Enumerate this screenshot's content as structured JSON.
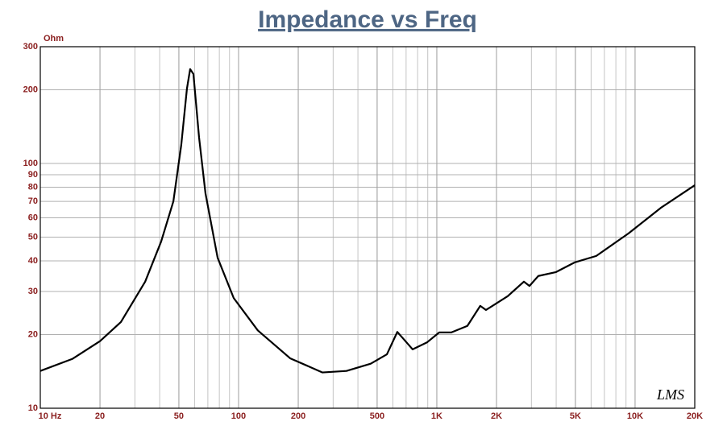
{
  "chart_data": {
    "type": "line",
    "title": "Impedance vs Freq",
    "y_label": "Ohm",
    "watermark": "LMS",
    "log_x": true,
    "log_y": true,
    "grid": true,
    "minor_grid": true,
    "xlim": [
      10,
      20000
    ],
    "ylim": [
      10,
      300
    ],
    "xticks": [
      {
        "value": 10,
        "label": "10  Hz"
      },
      20,
      50,
      100,
      200,
      500,
      {
        "value": 1000,
        "label": "1K"
      },
      {
        "value": 2000,
        "label": "2K"
      },
      {
        "value": 5000,
        "label": "5K"
      },
      {
        "value": 10000,
        "label": "10K"
      },
      {
        "value": 20000,
        "label": "20K"
      }
    ],
    "yticks": [
      10,
      20,
      30,
      40,
      50,
      60,
      70,
      80,
      90,
      100,
      200,
      300
    ],
    "series": [
      {
        "name": "Impedance",
        "color": "#000000",
        "x": [
          10,
          14.5,
          20,
          25.5,
          33.8,
          40.7,
          46.9,
          51.4,
          54.9,
          57,
          59.2,
          63.2,
          68.1,
          78.4,
          94.5,
          125,
          182,
          265,
          350,
          464,
          560,
          632,
          675,
          755,
          894,
          1028,
          1183,
          1426,
          1656,
          1770,
          2279,
          2748,
          2933,
          3250,
          3992,
          4950,
          6370,
          9265,
          13490,
          20000
        ],
        "values": [
          14.2,
          15.9,
          18.8,
          22.5,
          32.9,
          48,
          70,
          119,
          202,
          243,
          232,
          128,
          75.5,
          41.2,
          28.2,
          20.8,
          16,
          14,
          14.2,
          15.2,
          16.6,
          20.5,
          19.3,
          17.4,
          18.6,
          20.4,
          20.4,
          21.7,
          26.2,
          25.2,
          28.7,
          32.9,
          31.6,
          34.7,
          36,
          39.4,
          41.9,
          51.8,
          65.9,
          81.5
        ]
      }
    ]
  }
}
